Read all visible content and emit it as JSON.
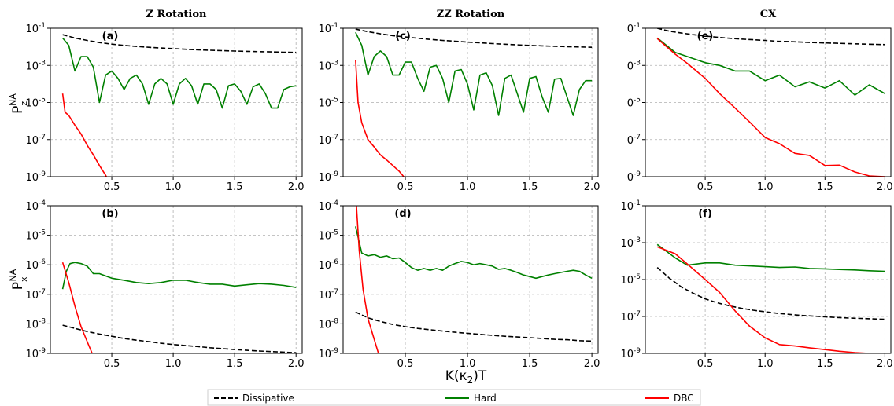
{
  "figure": {
    "xlabel": "K(κ₂)T",
    "ylabel_top": "P_z^NA",
    "ylabel_bottom": "P_x^NA"
  },
  "legend": [
    {
      "label": "Dissipative",
      "color": "#000000",
      "dash": true
    },
    {
      "label": "Hard",
      "color": "#008000",
      "dash": false
    },
    {
      "label": "DBC",
      "color": "#ff0000",
      "dash": false
    }
  ],
  "chart_data": [
    {
      "panel": "(a)",
      "title": "Z Rotation",
      "type": "line",
      "yscale": "log",
      "xlim": [
        0.0,
        2.05
      ],
      "ylim_exp": [
        -9,
        -1
      ],
      "xticks": [
        "0.5",
        "1.0",
        "1.5",
        "2.0"
      ],
      "yticks": [
        "10^-9",
        "10^-7",
        "10^-5",
        "10^-3",
        "10^-1"
      ],
      "grid": true,
      "series": [
        {
          "name": "Dissipative",
          "x": [
            0.1,
            0.2,
            0.3,
            0.4,
            0.5,
            0.6,
            0.7,
            0.8,
            0.9,
            1.0,
            1.1,
            1.2,
            1.3,
            1.4,
            1.5,
            1.6,
            1.7,
            1.8,
            1.9,
            2.0
          ],
          "y": [
            0.045,
            0.03,
            0.022,
            0.017,
            0.014,
            0.012,
            0.0105,
            0.0095,
            0.0087,
            0.008,
            0.0074,
            0.0069,
            0.0065,
            0.0062,
            0.0059,
            0.0057,
            0.0055,
            0.0053,
            0.0051,
            0.005
          ]
        },
        {
          "name": "Hard",
          "x": [
            0.1,
            0.15,
            0.2,
            0.25,
            0.3,
            0.35,
            0.4,
            0.45,
            0.5,
            0.55,
            0.6,
            0.65,
            0.7,
            0.75,
            0.8,
            0.85,
            0.9,
            0.95,
            1.0,
            1.05,
            1.1,
            1.15,
            1.2,
            1.25,
            1.3,
            1.35,
            1.4,
            1.45,
            1.5,
            1.55,
            1.6,
            1.65,
            1.7,
            1.75,
            1.8,
            1.85,
            1.9,
            1.95,
            2.0
          ],
          "y": [
            0.03,
            0.012,
            0.0005,
            0.003,
            0.003,
            0.0008,
            1e-05,
            0.0003,
            0.0005,
            0.0002,
            5e-05,
            0.0002,
            0.0003,
            0.0001,
            8e-06,
            0.0001,
            0.0002,
            0.0001,
            8e-06,
            0.0001,
            0.0002,
            8e-05,
            8e-06,
            0.0001,
            0.0001,
            5e-05,
            5e-06,
            8e-05,
            0.0001,
            4e-05,
            8e-06,
            7e-05,
            0.0001,
            3e-05,
            5e-06,
            5e-06,
            5e-05,
            7e-05,
            8e-05
          ]
        },
        {
          "name": "DBC",
          "x": [
            0.1,
            0.12,
            0.15,
            0.2,
            0.25,
            0.3,
            0.35,
            0.4,
            0.45,
            0.5,
            0.55
          ],
          "y": [
            3e-05,
            3e-06,
            2e-06,
            6e-07,
            2e-07,
            5e-08,
            1.5e-08,
            4e-09,
            1.2e-09,
            3e-10,
            1e-10
          ]
        }
      ]
    },
    {
      "panel": "(b)",
      "title": "",
      "type": "line",
      "yscale": "log",
      "xlim": [
        0.0,
        2.05
      ],
      "ylim_exp": [
        -9,
        -4
      ],
      "xticks": [
        "0.5",
        "1.0",
        "1.5",
        "2.0"
      ],
      "yticks": [
        "10^-9",
        "10^-8",
        "10^-7",
        "10^-6",
        "10^-5",
        "10^-4"
      ],
      "grid": true,
      "series": [
        {
          "name": "Dissipative",
          "x": [
            0.1,
            0.2,
            0.3,
            0.4,
            0.5,
            0.6,
            0.7,
            0.8,
            0.9,
            1.0,
            1.1,
            1.2,
            1.3,
            1.4,
            1.5,
            1.6,
            1.7,
            1.8,
            1.9,
            2.0
          ],
          "y": [
            9e-09,
            7e-09,
            5.5e-09,
            4.5e-09,
            3.8e-09,
            3.2e-09,
            2.8e-09,
            2.5e-09,
            2.2e-09,
            2e-09,
            1.85e-09,
            1.7e-09,
            1.55e-09,
            1.45e-09,
            1.35e-09,
            1.27e-09,
            1.2e-09,
            1.15e-09,
            1.1e-09,
            1.05e-09
          ]
        },
        {
          "name": "Hard",
          "x": [
            0.1,
            0.13,
            0.16,
            0.2,
            0.25,
            0.3,
            0.35,
            0.4,
            0.5,
            0.6,
            0.7,
            0.8,
            0.9,
            1.0,
            1.1,
            1.2,
            1.3,
            1.4,
            1.5,
            1.6,
            1.7,
            1.8,
            1.9,
            2.0
          ],
          "y": [
            1.5e-07,
            6e-07,
            1.1e-06,
            1.2e-06,
            1.1e-06,
            9e-07,
            5e-07,
            5e-07,
            3.5e-07,
            3e-07,
            2.5e-07,
            2.3e-07,
            2.5e-07,
            3e-07,
            3e-07,
            2.5e-07,
            2.2e-07,
            2.2e-07,
            1.9e-07,
            2.1e-07,
            2.3e-07,
            2.2e-07,
            2e-07,
            1.7e-07
          ]
        },
        {
          "name": "DBC",
          "x": [
            0.1,
            0.15,
            0.2,
            0.25,
            0.3,
            0.35,
            0.4
          ],
          "y": [
            1.2e-06,
            2.5e-07,
            4e-08,
            8e-09,
            2.5e-09,
            8e-10,
            2e-10
          ]
        }
      ]
    },
    {
      "panel": "(c)",
      "title": "ZZ Rotation",
      "type": "line",
      "yscale": "log",
      "xlim": [
        0.0,
        2.05
      ],
      "ylim_exp": [
        -9,
        -1
      ],
      "xticks": [
        "0.5",
        "1.0",
        "1.5",
        "2.0"
      ],
      "yticks": [
        "10^-9",
        "10^-7",
        "10^-5",
        "10^-3",
        "10^-1"
      ],
      "grid": true,
      "series": [
        {
          "name": "Dissipative",
          "x": [
            0.1,
            0.2,
            0.3,
            0.4,
            0.5,
            0.6,
            0.7,
            0.8,
            0.9,
            1.0,
            1.1,
            1.2,
            1.3,
            1.4,
            1.5,
            1.6,
            1.7,
            1.8,
            1.9,
            2.0
          ],
          "y": [
            0.09,
            0.065,
            0.05,
            0.04,
            0.034,
            0.029,
            0.025,
            0.022,
            0.02,
            0.018,
            0.0165,
            0.015,
            0.0138,
            0.0128,
            0.012,
            0.0113,
            0.0107,
            0.0102,
            0.0098,
            0.0095
          ]
        },
        {
          "name": "Hard",
          "x": [
            0.1,
            0.15,
            0.2,
            0.25,
            0.3,
            0.35,
            0.4,
            0.45,
            0.5,
            0.55,
            0.6,
            0.65,
            0.7,
            0.75,
            0.8,
            0.85,
            0.9,
            0.95,
            1.0,
            1.05,
            1.1,
            1.15,
            1.2,
            1.25,
            1.3,
            1.35,
            1.4,
            1.45,
            1.5,
            1.55,
            1.6,
            1.65,
            1.7,
            1.75,
            1.8,
            1.85,
            1.9,
            1.95,
            2.0
          ],
          "y": [
            0.06,
            0.012,
            0.0003,
            0.003,
            0.006,
            0.003,
            0.0003,
            0.0003,
            0.0015,
            0.0015,
            0.0002,
            4e-05,
            0.0008,
            0.001,
            0.0002,
            1e-05,
            0.0005,
            0.0006,
            0.0001,
            4e-06,
            0.0003,
            0.0004,
            8e-05,
            2e-06,
            0.0002,
            0.0003,
            3e-05,
            3e-06,
            0.0002,
            0.00025,
            2e-05,
            3e-06,
            0.00018,
            0.0002,
            2e-05,
            2e-06,
            5e-05,
            0.00015,
            0.00015
          ]
        },
        {
          "name": "DBC",
          "x": [
            0.1,
            0.12,
            0.15,
            0.2,
            0.25,
            0.3,
            0.35,
            0.4,
            0.45,
            0.5,
            0.55,
            0.6
          ],
          "y": [
            0.002,
            1e-05,
            8e-07,
            1e-07,
            4e-08,
            1.5e-08,
            8e-09,
            4e-09,
            2e-09,
            8e-10,
            3e-10,
            1e-10
          ]
        }
      ]
    },
    {
      "panel": "(d)",
      "title": "",
      "type": "line",
      "yscale": "log",
      "xlim": [
        0.0,
        2.05
      ],
      "ylim_exp": [
        -9,
        -4
      ],
      "xticks": [
        "0.5",
        "1.0",
        "1.5",
        "2.0"
      ],
      "yticks": [
        "10^-9",
        "10^-8",
        "10^-7",
        "10^-6",
        "10^-5",
        "10^-4"
      ],
      "grid": true,
      "series": [
        {
          "name": "Dissipative",
          "x": [
            0.1,
            0.2,
            0.3,
            0.4,
            0.5,
            0.6,
            0.7,
            0.8,
            0.9,
            1.0,
            1.1,
            1.2,
            1.3,
            1.4,
            1.5,
            1.6,
            1.7,
            1.8,
            1.9,
            2.0
          ],
          "y": [
            2.5e-08,
            1.6e-08,
            1.2e-08,
            9.5e-09,
            8e-09,
            7e-09,
            6.3e-09,
            5.7e-09,
            5.2e-09,
            4.8e-09,
            4.4e-09,
            4.1e-09,
            3.8e-09,
            3.6e-09,
            3.4e-09,
            3.2e-09,
            3e-09,
            2.9e-09,
            2.7e-09,
            2.6e-09
          ]
        },
        {
          "name": "Hard",
          "x": [
            0.1,
            0.15,
            0.2,
            0.25,
            0.3,
            0.35,
            0.4,
            0.45,
            0.5,
            0.55,
            0.6,
            0.65,
            0.7,
            0.75,
            0.8,
            0.85,
            0.9,
            0.95,
            1.0,
            1.05,
            1.1,
            1.15,
            1.2,
            1.25,
            1.3,
            1.35,
            1.4,
            1.45,
            1.5,
            1.55,
            1.6,
            1.65,
            1.7,
            1.75,
            1.8,
            1.85,
            1.9,
            1.95,
            2.0
          ],
          "y": [
            2e-05,
            2.5e-06,
            2e-06,
            2.2e-06,
            1.8e-06,
            2e-06,
            1.6e-06,
            1.7e-06,
            1.2e-06,
            8e-07,
            6.5e-07,
            7.5e-07,
            6.5e-07,
            7.5e-07,
            6.5e-07,
            9e-07,
            1.1e-06,
            1.3e-06,
            1.2e-06,
            1e-06,
            1.1e-06,
            1e-06,
            9e-07,
            7e-07,
            7.5e-07,
            6.5e-07,
            5.5e-07,
            4.5e-07,
            4e-07,
            3.5e-07,
            4e-07,
            4.5e-07,
            5e-07,
            5.5e-07,
            6e-07,
            6.5e-07,
            6e-07,
            4.5e-07,
            3.5e-07
          ]
        },
        {
          "name": "DBC",
          "x": [
            0.1,
            0.13,
            0.16,
            0.2,
            0.25,
            0.3
          ],
          "y": [
            0.0003,
            3e-06,
            1.5e-07,
            1.5e-08,
            3e-09,
            6e-10
          ]
        }
      ]
    },
    {
      "panel": "(e)",
      "title": "CX",
      "type": "line",
      "yscale": "log",
      "xlim": [
        0.0,
        2.05
      ],
      "ylim_exp": [
        -9,
        -1
      ],
      "xticks": [
        "0.5",
        "1.0",
        "1.5",
        "2.0"
      ],
      "yticks": [
        "0^-9",
        "0^-7",
        "0^-5",
        "0^-3",
        "0^-1"
      ],
      "grid": true,
      "series": [
        {
          "name": "Dissipative",
          "x": [
            0.1,
            0.2,
            0.3,
            0.4,
            0.5,
            0.6,
            0.7,
            0.8,
            0.9,
            1.0,
            1.1,
            1.2,
            1.3,
            1.4,
            1.5,
            1.6,
            1.7,
            1.8,
            1.9,
            2.0
          ],
          "y": [
            0.1,
            0.07,
            0.055,
            0.045,
            0.038,
            0.033,
            0.029,
            0.026,
            0.024,
            0.022,
            0.02,
            0.019,
            0.018,
            0.017,
            0.0162,
            0.0155,
            0.0148,
            0.0142,
            0.0137,
            0.0132
          ]
        },
        {
          "name": "Hard",
          "x": [
            0.1,
            0.25,
            0.35,
            0.5,
            0.62,
            0.75,
            0.87,
            1.0,
            1.12,
            1.25,
            1.37,
            1.5,
            1.62,
            1.75,
            1.87,
            2.0
          ],
          "y": [
            0.03,
            0.005,
            0.003,
            0.0014,
            0.001,
            0.0005,
            0.0005,
            0.00015,
            0.0003,
            7e-05,
            0.00013,
            6e-05,
            0.00015,
            2.5e-05,
            9e-05,
            3e-05
          ]
        },
        {
          "name": "DBC",
          "x": [
            0.1,
            0.25,
            0.35,
            0.5,
            0.62,
            0.75,
            0.87,
            1.0,
            1.12,
            1.25,
            1.37,
            1.5,
            1.62,
            1.75,
            1.87,
            2.0
          ],
          "y": [
            0.028,
            0.004,
            0.0013,
            0.0002,
            3e-05,
            5e-06,
            9e-07,
            1.3e-07,
            6e-08,
            1.8e-08,
            1.4e-08,
            4e-09,
            4.2e-09,
            1.8e-09,
            1.1e-09,
            1e-09
          ]
        }
      ]
    },
    {
      "panel": "(f)",
      "title": "",
      "type": "line",
      "yscale": "log",
      "xlim": [
        0.0,
        2.05
      ],
      "ylim_exp": [
        -9,
        -1
      ],
      "xticks": [
        "0.5",
        "1.0",
        "1.5",
        "2.0"
      ],
      "yticks": [
        "10^-9",
        "10^-7",
        "10^-5",
        "10^-3",
        "10^-1"
      ],
      "grid": true,
      "series": [
        {
          "name": "Dissipative",
          "x": [
            0.1,
            0.2,
            0.3,
            0.4,
            0.5,
            0.6,
            0.7,
            0.8,
            0.9,
            1.0,
            1.1,
            1.2,
            1.3,
            1.4,
            1.5,
            1.6,
            1.7,
            1.8,
            1.9,
            2.0
          ],
          "y": [
            4.5e-05,
            1.2e-05,
            4e-06,
            1.8e-06,
            9e-07,
            5.5e-07,
            3.8e-07,
            2.8e-07,
            2.2e-07,
            1.8e-07,
            1.5e-07,
            1.3e-07,
            1.15e-07,
            1.05e-07,
            9.5e-08,
            8.8e-08,
            8.2e-08,
            7.8e-08,
            7.4e-08,
            7e-08
          ]
        },
        {
          "name": "Hard",
          "x": [
            0.1,
            0.25,
            0.35,
            0.5,
            0.62,
            0.75,
            0.87,
            1.0,
            1.12,
            1.25,
            1.37,
            1.5,
            1.62,
            1.75,
            1.87,
            2.0
          ],
          "y": [
            0.0008,
            0.00015,
            6e-05,
            8e-05,
            8e-05,
            6e-05,
            5.5e-05,
            5e-05,
            4.5e-05,
            4.8e-05,
            4e-05,
            3.8e-05,
            3.5e-05,
            3.3e-05,
            3e-05,
            2.8e-05
          ]
        },
        {
          "name": "DBC",
          "x": [
            0.1,
            0.25,
            0.35,
            0.5,
            0.62,
            0.75,
            0.87,
            1.0,
            1.12,
            1.25,
            1.37,
            1.5,
            1.62,
            1.75,
            1.87,
            2.0
          ],
          "y": [
            0.0006,
            0.00025,
            7e-05,
            1e-05,
            2e-06,
            2e-07,
            3e-08,
            7e-09,
            3e-09,
            2.5e-09,
            2e-09,
            1.6e-09,
            1.3e-09,
            1.1e-09,
            1e-09,
            7e-10
          ]
        }
      ]
    }
  ]
}
